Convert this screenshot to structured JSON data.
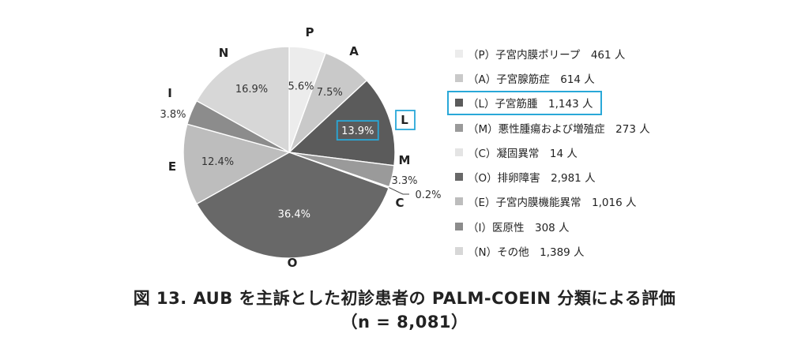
{
  "chart_data": {
    "type": "pie",
    "slices": [
      {
        "key": "P",
        "label": "P",
        "percent": "5.6%",
        "value": 5.6,
        "color": "#ececec",
        "legend": "（P）子宮内膜ポリープ　461 人",
        "count": 461
      },
      {
        "key": "A",
        "label": "A",
        "percent": "7.5%",
        "value": 7.5,
        "color": "#c9c9c9",
        "legend": "（A）子宮腺筋症　614 人",
        "count": 614
      },
      {
        "key": "L",
        "label": "L",
        "percent": "13.9%",
        "value": 13.9,
        "color": "#5b5b5b",
        "legend": "（L）子宮筋腫　1,143 人",
        "count": 1143,
        "highlight": true
      },
      {
        "key": "M",
        "label": "M",
        "percent": "3.3%",
        "value": 3.3,
        "color": "#9a9a9a",
        "legend": "（M）悪性腫瘍および増殖症　273 人",
        "count": 273
      },
      {
        "key": "C",
        "label": "C",
        "percent": "0.2%",
        "value": 0.2,
        "color": "#e4e4e4",
        "legend": "（C）凝固異常　14 人",
        "count": 14
      },
      {
        "key": "O",
        "label": "O",
        "percent": "36.4%",
        "value": 36.4,
        "color": "#686868",
        "legend": "（O）排卵障害　2,981 人",
        "count": 2981
      },
      {
        "key": "E",
        "label": "E",
        "percent": "12.4%",
        "value": 12.4,
        "color": "#bdbdbd",
        "legend": "（E）子宮内膜機能異常　1,016 人",
        "count": 1016
      },
      {
        "key": "I",
        "label": "I",
        "percent": "3.8%",
        "value": 3.8,
        "color": "#8c8c8c",
        "legend": "（I）医原性　308 人",
        "count": 308
      },
      {
        "key": "N",
        "label": "N",
        "percent": "16.9%",
        "value": 16.9,
        "color": "#d7d7d7",
        "legend": "（N）その他　1,389 人",
        "count": 1389
      }
    ],
    "title": "図 13.  AUB を主訴とした初診患者の PALM-COEIN 分類による評価",
    "subtitle": "（n = 8,081）",
    "legend_placement": "right",
    "highlight_color": "#29a8d8"
  }
}
